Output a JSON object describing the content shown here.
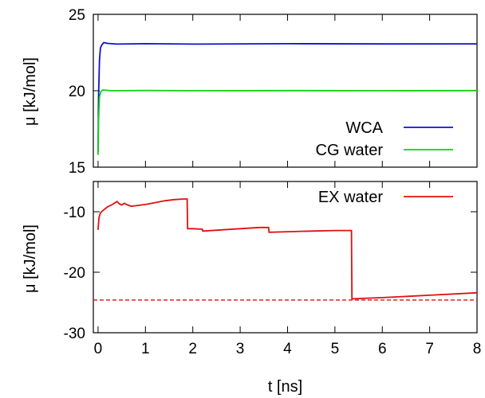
{
  "chart_data": [
    {
      "type": "line",
      "ylabel": "μ [kJ/mol]",
      "xlim": [
        -0.1,
        8
      ],
      "ylim": [
        15,
        25
      ],
      "yticks": [
        15,
        20,
        25
      ],
      "legend": "lower-right",
      "grid": false,
      "series": [
        {
          "name": "WCA",
          "color": "#1010d0",
          "x": [
            0,
            0.01,
            0.03,
            0.05,
            0.08,
            0.12,
            0.2,
            0.4,
            1,
            2,
            4,
            6,
            8
          ],
          "y": [
            16.0,
            19.5,
            22.0,
            22.8,
            23.0,
            23.15,
            23.1,
            23.05,
            23.08,
            23.05,
            23.08,
            23.06,
            23.07
          ]
        },
        {
          "name": "CG water",
          "color": "#10d010",
          "x": [
            0,
            0.01,
            0.03,
            0.06,
            0.1,
            0.3,
            1,
            2,
            4,
            6,
            8
          ],
          "y": [
            15.8,
            18.0,
            19.6,
            19.95,
            20.05,
            20.0,
            20.02,
            20.0,
            20.01,
            20.0,
            20.01
          ]
        }
      ]
    },
    {
      "type": "line",
      "ylabel": "μ [kJ/mol]",
      "xlabel": "t [ns]",
      "xlim": [
        -0.1,
        8
      ],
      "ylim": [
        -30,
        -5
      ],
      "yticks": [
        -10,
        -20,
        -30
      ],
      "xticks": [
        0,
        1,
        2,
        3,
        4,
        5,
        6,
        7,
        8
      ],
      "legend": "top-right",
      "grid": false,
      "reference_line": {
        "y": -24.6,
        "color": "#e01010",
        "style": "dashed"
      },
      "series": [
        {
          "name": "EX water",
          "color": "#e01010",
          "x": [
            0,
            0.02,
            0.05,
            0.1,
            0.2,
            0.3,
            0.4,
            0.45,
            0.5,
            0.55,
            0.6,
            0.7,
            0.8,
            1.0,
            1.2,
            1.4,
            1.6,
            1.8,
            1.88,
            1.89,
            2.0,
            2.2,
            2.21,
            2.6,
            3.0,
            3.4,
            3.6,
            3.61,
            4.0,
            4.5,
            5.0,
            5.35,
            5.36,
            6,
            7,
            8
          ],
          "y": [
            -13,
            -11,
            -10.2,
            -9.8,
            -9.2,
            -8.8,
            -8.3,
            -8.7,
            -8.9,
            -8.6,
            -8.8,
            -9.1,
            -9.0,
            -8.8,
            -8.5,
            -8.2,
            -8.0,
            -7.9,
            -7.9,
            -12.8,
            -12.8,
            -12.9,
            -13.2,
            -13.0,
            -12.8,
            -12.6,
            -12.6,
            -13.4,
            -13.3,
            -13.2,
            -13.1,
            -13.1,
            -24.4,
            -24.2,
            -23.8,
            -23.4
          ]
        }
      ]
    }
  ]
}
